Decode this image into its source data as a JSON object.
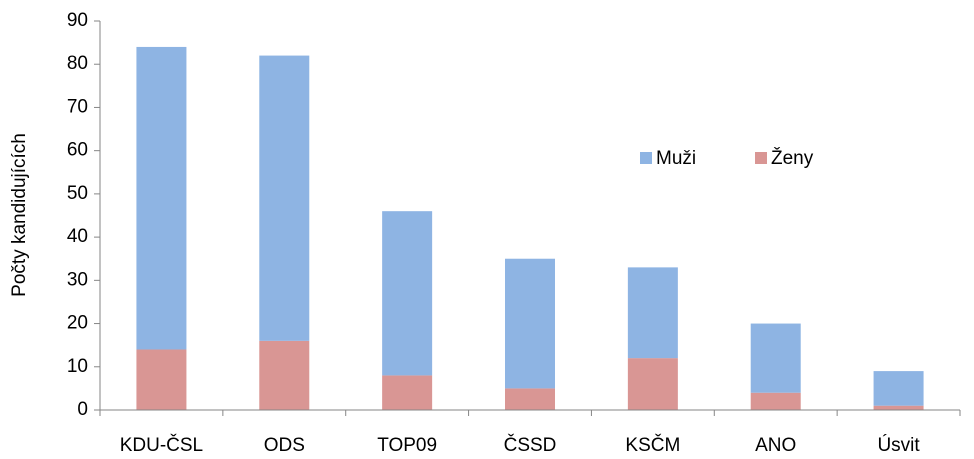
{
  "chart_data": {
    "type": "stacked_bar",
    "categories": [
      "KDU-ČSL",
      "ODS",
      "TOP09",
      "ČSSD",
      "KSČM",
      "ANO",
      "Úsvit"
    ],
    "series": [
      {
        "name": "Muži",
        "color": "#8eb4e3",
        "values": [
          70,
          66,
          38,
          30,
          21,
          16,
          8
        ]
      },
      {
        "name": "Ženy",
        "color": "#d99694",
        "values": [
          14,
          16,
          8,
          5,
          12,
          4,
          1
        ]
      }
    ],
    "y_label": "Počty kandidujících",
    "ylim": [
      0,
      90
    ],
    "yticks": [
      0,
      10,
      20,
      30,
      40,
      50,
      60,
      70,
      80,
      90
    ],
    "grid": false,
    "legend": "right"
  }
}
